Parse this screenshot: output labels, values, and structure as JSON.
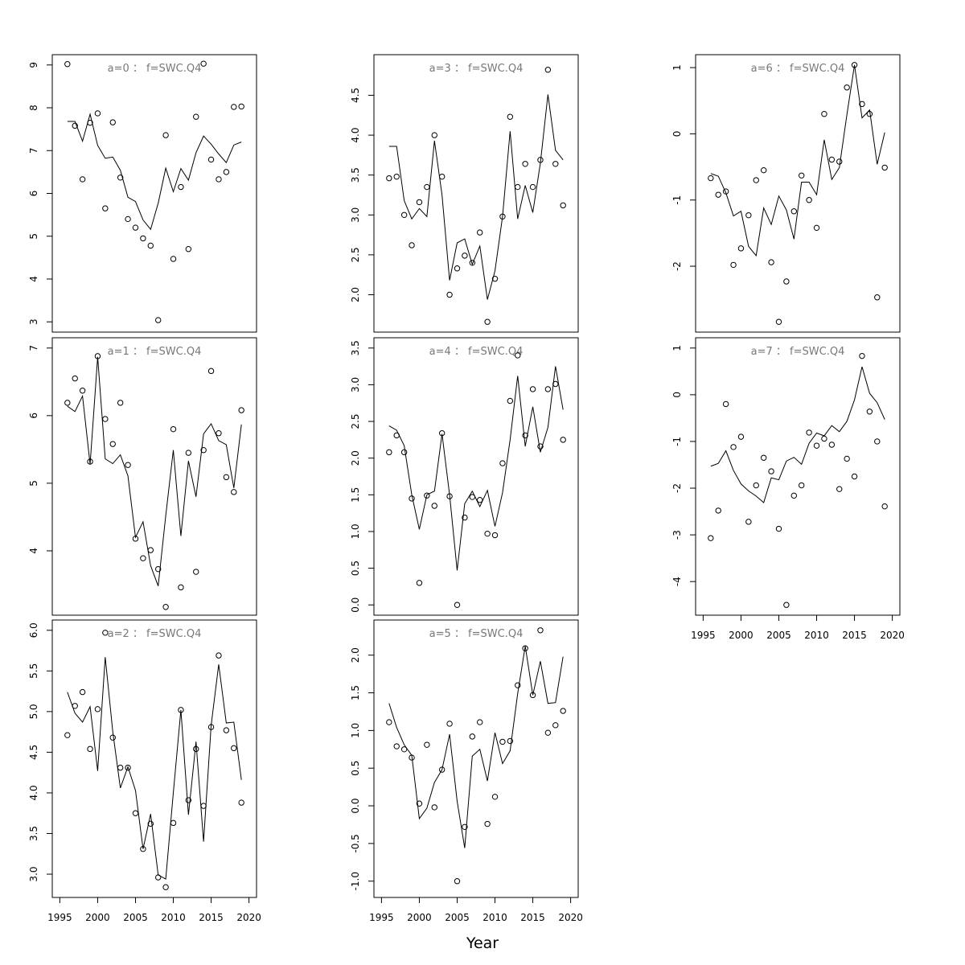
{
  "figure": {
    "xlabel": "Year"
  },
  "chart_data": [
    {
      "type": "line",
      "title": "a=0 ： f=SWC.Q4",
      "x": [
        1996,
        1997,
        1998,
        1999,
        2000,
        2001,
        2002,
        2003,
        2004,
        2005,
        2006,
        2007,
        2008,
        2009,
        2010,
        2011,
        2012,
        2013,
        2014,
        2015,
        2016,
        2017,
        2018,
        2019
      ],
      "series": [
        {
          "style": "points",
          "values": [
            9.02,
            7.58,
            6.33,
            7.65,
            7.87,
            5.65,
            7.66,
            6.37,
            5.4,
            5.2,
            4.95,
            4.78,
            3.04,
            7.36,
            4.47,
            6.15,
            4.7,
            7.79,
            9.03,
            6.79,
            6.33,
            6.5,
            8.02,
            8.03
          ]
        },
        {
          "style": "line",
          "values": [
            7.68,
            7.68,
            7.22,
            7.85,
            7.12,
            6.82,
            6.85,
            6.54,
            5.91,
            5.81,
            5.38,
            5.16,
            5.77,
            6.59,
            6.04,
            6.58,
            6.31,
            6.95,
            7.34,
            7.15,
            6.92,
            6.72,
            7.13,
            7.2
          ]
        }
      ],
      "xlim": [
        1995,
        2020
      ],
      "ylim": [
        3,
        9
      ],
      "yticks": [
        3,
        4,
        5,
        6,
        7,
        8,
        9
      ],
      "ytick_labels": [
        "3",
        "4",
        "5",
        "6",
        "7",
        "8",
        "9"
      ],
      "xaxis_visible": false
    },
    {
      "type": "line",
      "title": "a=1 ： f=SWC.Q4",
      "x": [
        1996,
        1997,
        1998,
        1999,
        2000,
        2001,
        2002,
        2003,
        2004,
        2005,
        2006,
        2007,
        2008,
        2009,
        2010,
        2011,
        2012,
        2013,
        2014,
        2015,
        2016,
        2017,
        2018,
        2019
      ],
      "series": [
        {
          "style": "points",
          "values": [
            6.19,
            6.55,
            6.37,
            5.32,
            6.88,
            5.95,
            5.58,
            6.19,
            5.27,
            4.18,
            3.89,
            4.01,
            3.73,
            3.17,
            5.8,
            3.46,
            5.45,
            3.69,
            5.49,
            6.66,
            5.74,
            5.09,
            4.87,
            6.08
          ]
        },
        {
          "style": "line",
          "values": [
            6.14,
            6.06,
            6.29,
            5.28,
            6.87,
            5.36,
            5.29,
            5.42,
            5.11,
            4.2,
            4.43,
            3.78,
            3.48,
            4.52,
            5.49,
            4.22,
            5.33,
            4.8,
            5.73,
            5.88,
            5.63,
            5.57,
            4.93,
            5.87
          ]
        }
      ],
      "xlim": [
        1995,
        2020
      ],
      "ylim": [
        3.2,
        7.0
      ],
      "yticks": [
        4,
        5,
        6,
        7
      ],
      "ytick_labels": [
        "4",
        "5",
        "6",
        "7"
      ],
      "xaxis_visible": false
    },
    {
      "type": "line",
      "title": "a=2 ： f=SWC.Q4",
      "x": [
        1996,
        1997,
        1998,
        1999,
        2000,
        2001,
        2002,
        2003,
        2004,
        2005,
        2006,
        2007,
        2008,
        2009,
        2010,
        2011,
        2012,
        2013,
        2014,
        2015,
        2016,
        2017,
        2018,
        2019
      ],
      "series": [
        {
          "style": "points",
          "values": [
            4.71,
            5.07,
            5.24,
            4.54,
            5.03,
            5.97,
            4.68,
            4.31,
            4.31,
            3.75,
            3.31,
            3.62,
            2.96,
            2.84,
            3.63,
            5.02,
            3.91,
            4.54,
            3.84,
            4.81,
            5.69,
            4.77,
            4.55,
            3.88
          ]
        },
        {
          "style": "line",
          "values": [
            5.24,
            4.98,
            4.87,
            5.06,
            4.27,
            5.67,
            4.75,
            4.06,
            4.32,
            4.03,
            3.31,
            3.74,
            2.99,
            2.94,
            4.0,
            5.02,
            3.73,
            4.63,
            3.4,
            4.83,
            5.58,
            4.86,
            4.87,
            4.16
          ]
        }
      ],
      "xlim": [
        1995,
        2020
      ],
      "ylim": [
        2.84,
        6.0
      ],
      "yticks": [
        3.0,
        3.5,
        4.0,
        4.5,
        5.0,
        5.5,
        6.0
      ],
      "ytick_labels": [
        "3.0",
        "3.5",
        "4.0",
        "4.5",
        "5.0",
        "5.5",
        "6.0"
      ],
      "xticks": [
        1995,
        2000,
        2005,
        2010,
        2015,
        2020
      ],
      "xtick_labels": [
        "1995",
        "2000",
        "2005",
        "2010",
        "2015",
        "2020"
      ],
      "xaxis_visible": true
    },
    {
      "type": "line",
      "title": "a=3 ： f=SWC.Q4",
      "x": [
        1996,
        1997,
        1998,
        1999,
        2000,
        2001,
        2002,
        2003,
        2004,
        2005,
        2006,
        2007,
        2008,
        2009,
        2010,
        2011,
        2012,
        2013,
        2014,
        2015,
        2016,
        2017,
        2018,
        2019
      ],
      "series": [
        {
          "style": "points",
          "values": [
            3.46,
            3.48,
            3.0,
            2.62,
            3.16,
            3.35,
            4.0,
            3.48,
            2.0,
            2.33,
            2.49,
            2.4,
            2.78,
            1.66,
            2.2,
            2.98,
            4.23,
            3.35,
            3.64,
            3.35,
            3.69,
            4.82,
            3.64,
            3.12
          ]
        },
        {
          "style": "line",
          "values": [
            3.86,
            3.86,
            3.18,
            2.95,
            3.08,
            2.98,
            3.93,
            3.25,
            2.18,
            2.65,
            2.7,
            2.38,
            2.61,
            1.94,
            2.3,
            2.98,
            4.05,
            2.95,
            3.37,
            3.03,
            3.65,
            4.51,
            3.81,
            3.69
          ]
        }
      ],
      "xlim": [
        1995,
        2020
      ],
      "ylim": [
        1.66,
        4.88
      ],
      "yticks": [
        2.0,
        2.5,
        3.0,
        3.5,
        4.0,
        4.5
      ],
      "ytick_labels": [
        "2.0",
        "2.5",
        "3.0",
        "3.5",
        "4.0",
        "4.5"
      ],
      "xaxis_visible": false
    },
    {
      "type": "line",
      "title": "a=4 ： f=SWC.Q4",
      "x": [
        1996,
        1997,
        1998,
        1999,
        2000,
        2001,
        2002,
        2003,
        2004,
        2005,
        2006,
        2007,
        2008,
        2009,
        2010,
        2011,
        2012,
        2013,
        2014,
        2015,
        2016,
        2017,
        2018,
        2019
      ],
      "series": [
        {
          "style": "points",
          "values": [
            2.08,
            2.31,
            2.08,
            1.45,
            0.3,
            1.49,
            1.35,
            2.34,
            1.48,
            0.0,
            1.19,
            1.47,
            1.43,
            0.97,
            0.95,
            1.93,
            2.78,
            3.4,
            2.31,
            2.94,
            2.16,
            2.94,
            3.01,
            2.25
          ]
        },
        {
          "style": "line",
          "values": [
            2.44,
            2.38,
            2.17,
            1.5,
            1.03,
            1.5,
            1.55,
            2.33,
            1.5,
            0.47,
            1.38,
            1.55,
            1.34,
            1.56,
            1.07,
            1.53,
            2.25,
            3.12,
            2.16,
            2.7,
            2.08,
            2.42,
            3.25,
            2.66
          ]
        }
      ],
      "xlim": [
        1995,
        2020
      ],
      "ylim": [
        0.0,
        3.5
      ],
      "yticks": [
        0.0,
        0.5,
        1.0,
        1.5,
        2.0,
        2.5,
        3.0,
        3.5
      ],
      "ytick_labels": [
        "0.0",
        "0.5",
        "1.0",
        "1.5",
        "2.0",
        "2.5",
        "3.0",
        "3.5"
      ],
      "xaxis_visible": false
    },
    {
      "type": "line",
      "title": "a=5 ： f=SWC.Q4",
      "x": [
        1996,
        1997,
        1998,
        1999,
        2000,
        2001,
        2002,
        2003,
        2004,
        2005,
        2006,
        2007,
        2008,
        2009,
        2010,
        2011,
        2012,
        2013,
        2014,
        2015,
        2016,
        2017,
        2018,
        2019
      ],
      "series": [
        {
          "style": "points",
          "values": [
            1.11,
            0.79,
            0.75,
            0.64,
            0.03,
            0.81,
            -0.02,
            0.48,
            1.09,
            -1.0,
            -0.28,
            0.92,
            1.11,
            -0.24,
            0.12,
            0.85,
            0.86,
            1.6,
            2.09,
            1.47,
            2.33,
            0.97,
            1.07,
            1.26
          ]
        },
        {
          "style": "line",
          "values": [
            1.36,
            1.04,
            0.81,
            0.67,
            -0.17,
            -0.03,
            0.31,
            0.48,
            0.95,
            0.06,
            -0.56,
            0.66,
            0.75,
            0.33,
            0.97,
            0.56,
            0.73,
            1.49,
            2.12,
            1.47,
            1.92,
            1.36,
            1.37,
            1.98
          ]
        }
      ],
      "xlim": [
        1995,
        2020
      ],
      "ylim": [
        -1.08,
        2.33
      ],
      "yticks": [
        -1.0,
        -0.5,
        0.0,
        0.5,
        1.0,
        1.5,
        2.0
      ],
      "ytick_labels": [
        "-1.0",
        "-0.5",
        "0.0",
        "0.5",
        "1.0",
        "1.5",
        "2.0"
      ],
      "xticks": [
        1995,
        2000,
        2005,
        2010,
        2015,
        2020
      ],
      "xtick_labels": [
        "1995",
        "2000",
        "2005",
        "2010",
        "2015",
        "2020"
      ],
      "xaxis_visible": true
    },
    {
      "type": "line",
      "title": "a=6 ： f=SWC.Q4",
      "x": [
        1996,
        1997,
        1998,
        1999,
        2000,
        2001,
        2002,
        2003,
        2004,
        2005,
        2006,
        2007,
        2008,
        2009,
        2010,
        2011,
        2012,
        2013,
        2014,
        2015,
        2016,
        2017,
        2018,
        2019
      ],
      "series": [
        {
          "style": "points",
          "values": [
            -0.67,
            -0.92,
            -0.87,
            -1.98,
            -1.73,
            -1.23,
            -0.7,
            -0.55,
            -1.94,
            -2.84,
            -2.23,
            -1.17,
            -0.63,
            -1.0,
            -1.42,
            0.3,
            -0.39,
            -0.42,
            0.7,
            1.04,
            0.45,
            0.3,
            -2.47,
            -0.51
          ]
        },
        {
          "style": "line",
          "values": [
            -0.6,
            -0.64,
            -0.89,
            -1.24,
            -1.17,
            -1.7,
            -1.84,
            -1.12,
            -1.37,
            -0.94,
            -1.15,
            -1.59,
            -0.73,
            -0.73,
            -0.92,
            -0.09,
            -0.69,
            -0.51,
            0.29,
            1.04,
            0.24,
            0.36,
            -0.46,
            0.02
          ]
        }
      ],
      "xlim": [
        1995,
        2020
      ],
      "ylim": [
        -2.84,
        1.04
      ],
      "yticks": [
        -2,
        -1,
        0,
        1
      ],
      "ytick_labels": [
        "-2",
        "-1",
        "0",
        "1"
      ],
      "xaxis_visible": false
    },
    {
      "type": "line",
      "title": "a=7 ： f=SWC.Q4",
      "x": [
        1996,
        1997,
        1998,
        1999,
        2000,
        2001,
        2002,
        2003,
        2004,
        2005,
        2006,
        2007,
        2008,
        2009,
        2010,
        2011,
        2012,
        2013,
        2014,
        2015,
        2016,
        2017,
        2018,
        2019
      ],
      "series": [
        {
          "style": "points",
          "values": [
            -3.07,
            -2.48,
            -0.2,
            -1.12,
            -0.9,
            -2.72,
            -1.94,
            -1.35,
            -1.64,
            -2.87,
            -4.5,
            -2.16,
            -1.94,
            -0.81,
            -1.09,
            -0.94,
            -1.07,
            -2.02,
            -1.37,
            -1.75,
            0.83,
            -0.36,
            -1.0,
            -2.39
          ]
        },
        {
          "style": "line",
          "values": [
            -1.53,
            -1.47,
            -1.2,
            -1.62,
            -1.91,
            -2.06,
            -2.17,
            -2.31,
            -1.78,
            -1.82,
            -1.42,
            -1.34,
            -1.49,
            -1.04,
            -0.82,
            -0.88,
            -0.66,
            -0.79,
            -0.57,
            -0.11,
            0.6,
            0.03,
            -0.17,
            -0.53
          ]
        }
      ],
      "xlim": [
        1995,
        2020
      ],
      "ylim": [
        -4.5,
        1.0
      ],
      "yticks": [
        -4,
        -3,
        -2,
        -1,
        0,
        1
      ],
      "ytick_labels": [
        "-4",
        "-3",
        "-2",
        "-1",
        "0",
        "1"
      ],
      "xticks": [
        1995,
        2000,
        2005,
        2010,
        2015,
        2020
      ],
      "xtick_labels": [
        "1995",
        "2000",
        "2005",
        "2010",
        "2015",
        "2020"
      ],
      "xaxis_visible": true
    }
  ]
}
